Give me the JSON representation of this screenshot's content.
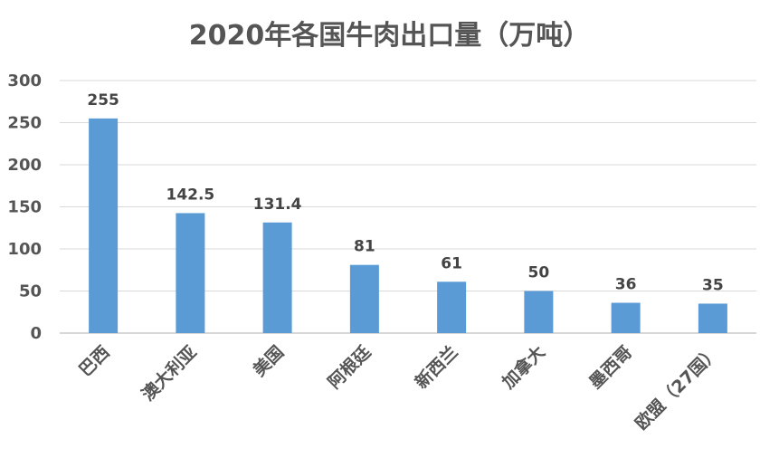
{
  "chart_data": {
    "type": "bar",
    "title": "2020年各国牛肉出口量（万吨）",
    "categories": [
      "巴西",
      "澳大利亚",
      "美国",
      "阿根廷",
      "新西兰",
      "加拿大",
      "墨西哥",
      "欧盟（27国）"
    ],
    "values": [
      255,
      142.5,
      131.4,
      81,
      61,
      50,
      36,
      35
    ],
    "value_labels": [
      "255",
      "142.5",
      "131.4",
      "81",
      "61",
      "50",
      "36",
      "35"
    ],
    "ylim": [
      0,
      300
    ],
    "yticks": [
      0,
      50,
      100,
      150,
      200,
      250,
      300
    ],
    "xlabel": "",
    "ylabel": "",
    "grid": true,
    "legend": "none",
    "bar_color": "#5b9bd5"
  }
}
